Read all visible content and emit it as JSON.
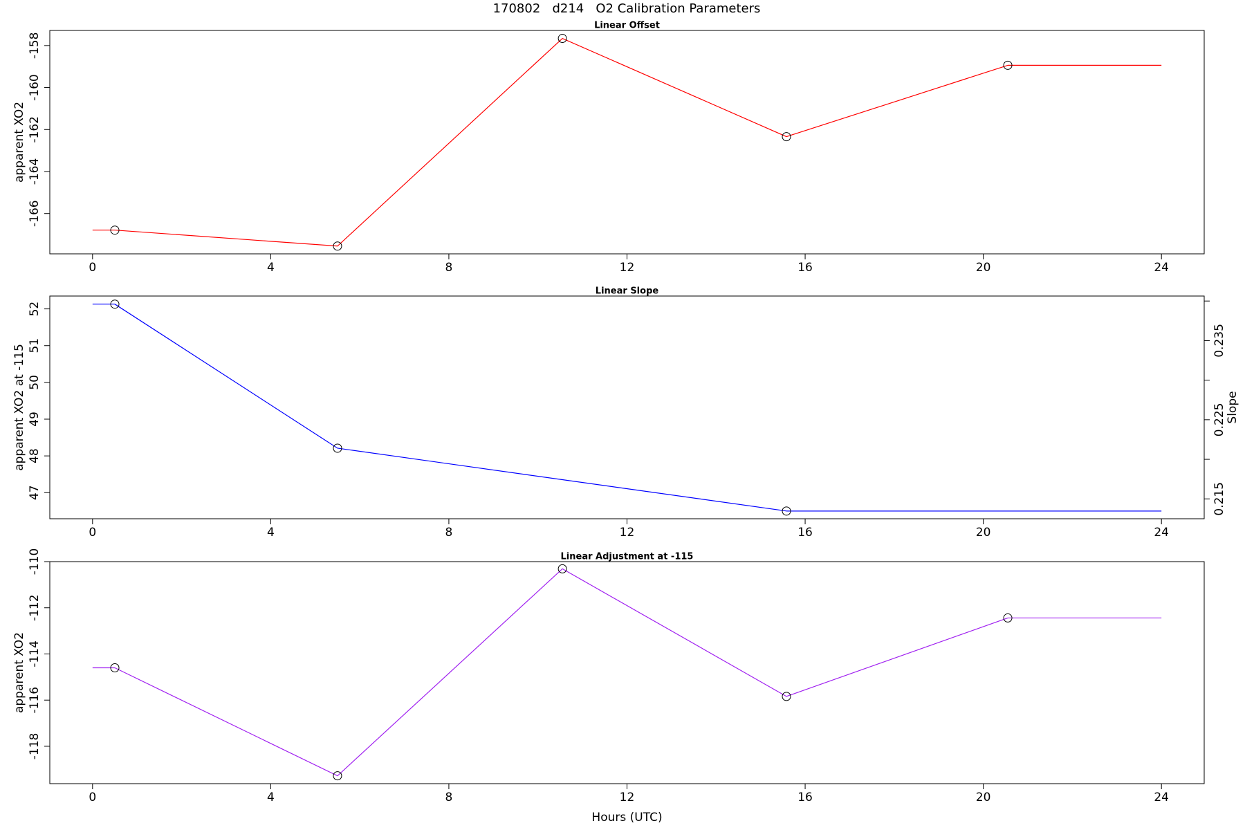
{
  "title": "170802   d214   O2 Calibration Parameters",
  "chart_data": [
    {
      "type": "line",
      "title": "Linear Offset",
      "ylabel": "apparent XO2",
      "x": [
        0.5,
        5.5,
        10.55,
        15.58,
        20.55
      ],
      "line_xrange": [
        0,
        24
      ],
      "series": [
        {
          "color": "#ff0000",
          "values": [
            -166.79,
            -167.55,
            -157.66,
            -162.34,
            -158.94
          ]
        }
      ],
      "marker": "circle",
      "xlim": [
        -0.96,
        24.96
      ],
      "xticks": [
        0,
        4,
        8,
        12,
        16,
        20,
        24
      ],
      "ylim": [
        -167.92,
        -157.28
      ],
      "yticks": [
        -166,
        -164,
        -162,
        -160,
        -158
      ]
    },
    {
      "type": "line",
      "title": "Linear Slope",
      "ylabel": "apparent XO2 at -115",
      "y2label": "Slope",
      "x": [
        0.5,
        5.5,
        15.58
      ],
      "line_xrange": [
        0,
        24
      ],
      "series": [
        {
          "color": "#0000ff",
          "values": [
            52.13,
            48.21,
            46.5
          ]
        }
      ],
      "marker": "circle",
      "xlim": [
        -0.96,
        24.96
      ],
      "xticks": [
        0,
        4,
        8,
        12,
        16,
        20,
        24
      ],
      "ylim": [
        46.29,
        52.35
      ],
      "yticks": [
        47,
        48,
        49,
        50,
        51,
        52
      ],
      "y2lim": [
        0.21249,
        0.24063
      ],
      "y2ticks": [
        0.215,
        {
          "value": 0.22,
          "label": null
        },
        0.225,
        {
          "value": 0.23,
          "label": null
        },
        0.235,
        {
          "value": 0.24,
          "label": null
        }
      ]
    },
    {
      "type": "line",
      "title": "Linear Adjustment at -115",
      "ylabel": "apparent XO2",
      "xlabel": "Hours (UTC)",
      "x": [
        0.5,
        5.5,
        10.55,
        15.58,
        20.55
      ],
      "line_xrange": [
        0,
        24
      ],
      "series": [
        {
          "color": "#a020f0",
          "values": [
            -114.6,
            -119.28,
            -110.31,
            -115.84,
            -112.44
          ]
        }
      ],
      "marker": "circle",
      "xlim": [
        -0.96,
        24.96
      ],
      "xticks": [
        0,
        4,
        8,
        12,
        16,
        20,
        24
      ],
      "ylim": [
        -119.62,
        -110
      ],
      "yticks": [
        -118,
        -116,
        -114,
        -112,
        -110
      ]
    }
  ]
}
